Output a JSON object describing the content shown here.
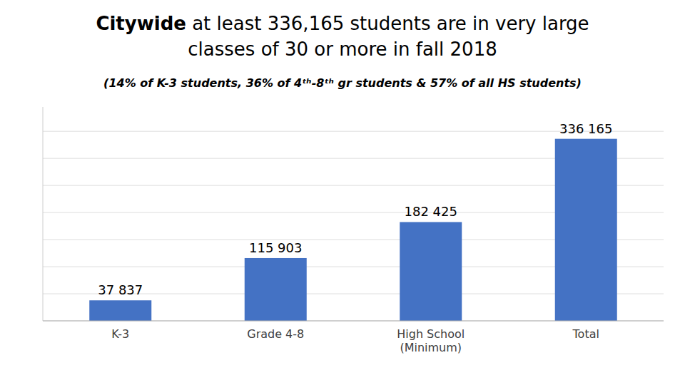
{
  "chart_data": {
    "type": "bar",
    "title": "Citywide at least 336,165 students are in very large\nclasses of 30 or more in fall 2018",
    "subtitle": "(14% of K-3 students, 36% of 4ᵗʰ-8ᵗʰ gr students & 57% of all HS students)",
    "categories": [
      "K-3",
      "Grade 4-8",
      "High School\n(Minimum)",
      "Total"
    ],
    "values": [
      37837,
      115903,
      182425,
      336165
    ],
    "value_labels": [
      "37 837",
      "115 903",
      "182 425",
      "336 165"
    ],
    "data_labels": true,
    "color": "#4472C4",
    "ylim": [
      0,
      395000
    ],
    "yticks": [
      0,
      50000,
      100000,
      150000,
      200000,
      250000,
      300000,
      350000
    ],
    "grid": true,
    "tick_labels": "x"
  }
}
